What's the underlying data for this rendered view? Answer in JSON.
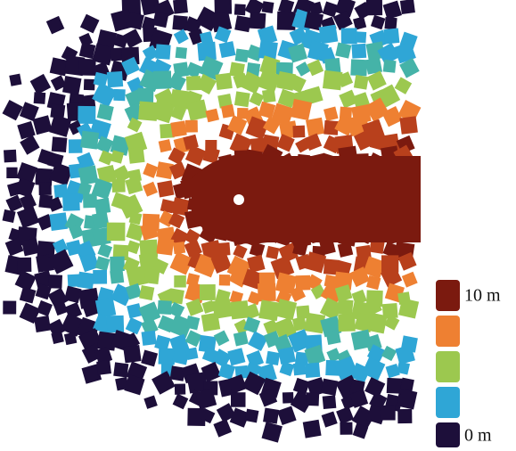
{
  "legend": {
    "top_label": "10 m",
    "bottom_label": "0 m"
  }
}
